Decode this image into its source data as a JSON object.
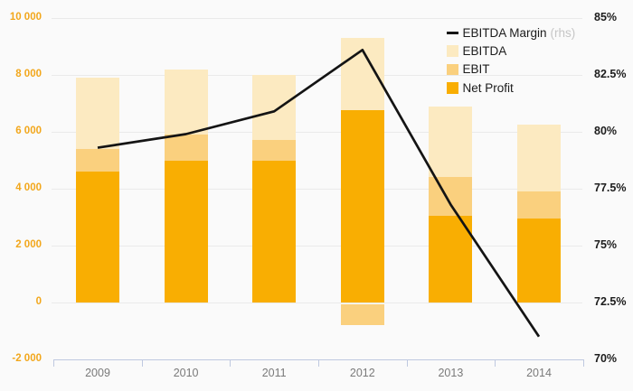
{
  "chart_data": {
    "type": "combo-bar-line",
    "categories": [
      "2009",
      "2010",
      "2011",
      "2012",
      "2013",
      "2014"
    ],
    "series": [
      {
        "name": "EBITDA Margin",
        "type": "line",
        "axis": "right",
        "color": "#141414",
        "values": [
          79.3,
          79.9,
          80.9,
          83.6,
          76.8,
          71.0
        ]
      },
      {
        "name": "EBITDA",
        "type": "bar",
        "axis": "left",
        "color": "#FCEAC1",
        "values": [
          7900,
          8200,
          8000,
          9300,
          6900,
          6250
        ]
      },
      {
        "name": "EBIT",
        "type": "bar",
        "axis": "left",
        "color": "#FAD07E",
        "values": [
          5400,
          5900,
          5700,
          -800,
          4400,
          3900
        ]
      },
      {
        "name": "Net Profit",
        "type": "bar",
        "axis": "left",
        "color": "#F9AE02",
        "values": [
          4600,
          5000,
          5000,
          6750,
          3050,
          2950
        ]
      }
    ],
    "left_axis": {
      "min": -2000,
      "max": 10000,
      "ticks": [
        {
          "label": "10 000",
          "value": 10000
        },
        {
          "label": "8 000",
          "value": 8000
        },
        {
          "label": "6 000",
          "value": 6000
        },
        {
          "label": "4 000",
          "value": 4000
        },
        {
          "label": "2 000",
          "value": 2000
        },
        {
          "label": "0",
          "value": 0
        },
        {
          "label": "-2 000",
          "value": -2000
        }
      ]
    },
    "right_axis": {
      "min": 70,
      "max": 85,
      "ticks": [
        {
          "label": "85%",
          "value": 85
        },
        {
          "label": "82.5%",
          "value": 82.5
        },
        {
          "label": "80%",
          "value": 80
        },
        {
          "label": "77.5%",
          "value": 77.5
        },
        {
          "label": "75%",
          "value": 75
        },
        {
          "label": "72.5%",
          "value": 72.5
        },
        {
          "label": "70%",
          "value": 70
        }
      ]
    },
    "legend": [
      {
        "label": "EBITDA Margin",
        "suffix": "(rhs)"
      },
      {
        "label": "EBITDA",
        "suffix": ""
      },
      {
        "label": "EBIT",
        "suffix": ""
      },
      {
        "label": "Net Profit",
        "suffix": ""
      }
    ],
    "legend_position": "top-right",
    "grid": true
  },
  "colors": {
    "background": "#FAFAFA",
    "gridline": "#EAEAEA",
    "axis_line": "#BFC9E0",
    "left_tick_text": "#F2A71C",
    "right_tick_text": "#1C1C1C",
    "year_text": "#7A7A7A",
    "line_series": "#141414",
    "legend_suffix_text": "#C6C6C6"
  }
}
